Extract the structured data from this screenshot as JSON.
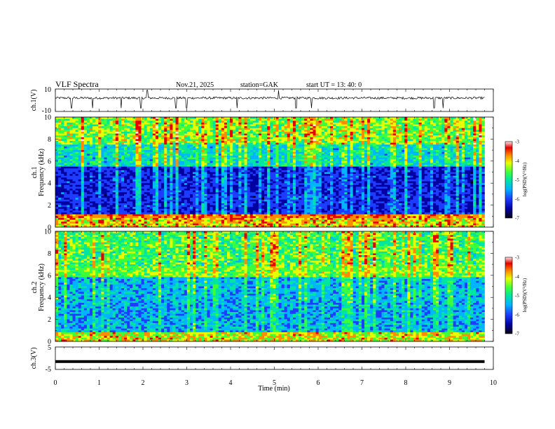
{
  "header": {
    "title": "VLF Spectra",
    "date": "Nov.21, 2025",
    "station": "station=GAK",
    "start": "start  UT =   13: 40: 0"
  },
  "chart_data": [
    {
      "type": "line",
      "ylabel": "ch.1(V)",
      "ylim": [
        -10,
        10
      ],
      "yticks": [
        "10",
        "-10"
      ],
      "xlim": [
        0,
        10
      ],
      "baseline": 2,
      "noise_amplitude": 1,
      "spikes_down": [
        0.37,
        0.85,
        1.5,
        1.95,
        2.75,
        3.0,
        4.15,
        5.5,
        5.85,
        8.65,
        8.85
      ],
      "spikes_up": [
        2.1,
        5.1
      ]
    },
    {
      "type": "heatmap",
      "ylabel_top": "ch.1",
      "ylabel": "Frequency  (kHz)",
      "ylim": [
        0,
        10
      ],
      "yticks": [
        "0",
        "2",
        "4",
        "6",
        "8",
        "10"
      ],
      "xlim": [
        0,
        9.8
      ],
      "colorbar": {
        "range": [
          -7,
          -3
        ],
        "ticks": [
          "-3",
          "-4",
          "-5",
          "-6",
          "-7"
        ],
        "label": "log(PSD)(V²/Hz)"
      }
    },
    {
      "type": "heatmap",
      "ylabel_top": "ch.2",
      "ylabel": "Frequency  (kHz)",
      "ylim": [
        0,
        10
      ],
      "yticks": [
        "0",
        "2",
        "4",
        "6",
        "8",
        "10"
      ],
      "xlim": [
        0,
        9.8
      ],
      "colorbar": {
        "range": [
          -7,
          -3
        ],
        "ticks": [
          "-3",
          "-4",
          "-5",
          "-6",
          "-7"
        ],
        "label": "log(PSD)(V²/Hz)"
      }
    },
    {
      "type": "line",
      "ylabel": "ch.3(V)",
      "ylim": [
        -5,
        5
      ],
      "yticks": [
        "5",
        "-5"
      ],
      "xlim": [
        0,
        10
      ],
      "baseline": -1.5
    }
  ],
  "xaxis": {
    "label": "Time  (min)",
    "ticks": [
      "0",
      "1",
      "2",
      "3",
      "4",
      "5",
      "6",
      "7",
      "8",
      "9",
      "10"
    ]
  },
  "colors": {
    "colormap": [
      "#0a0010",
      "#0000a0",
      "#1c3cff",
      "#00b4ff",
      "#00e6a0",
      "#3cff3c",
      "#e6ff00",
      "#ff8c00",
      "#e60000",
      "#ffe6e6"
    ]
  }
}
